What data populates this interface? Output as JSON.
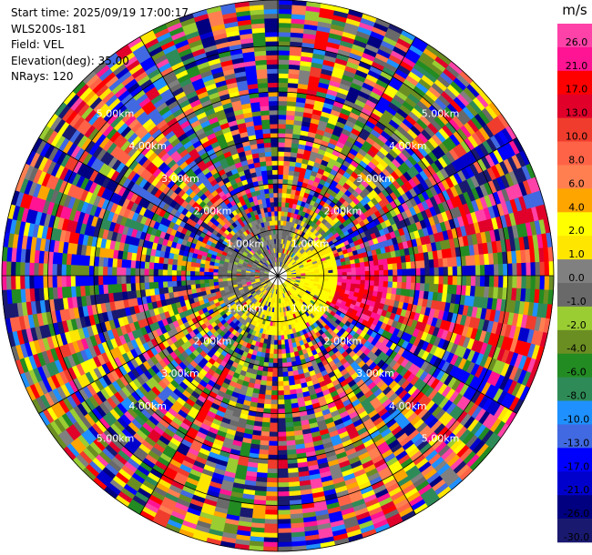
{
  "info": {
    "start_time": "Start time: 2025/09/19 17:00:17",
    "instrument": "WLS200s-181",
    "field": "Field: VEL",
    "elevation": "Elevation(deg): 35.00",
    "nrays": "NRays: 120"
  },
  "chart_data": {
    "type": "heatmap",
    "projection": "polar-ppi",
    "field": "VEL",
    "units": "m/s",
    "n_rays": 120,
    "elevation_deg": 35.0,
    "range_rings_km": [
      1.0,
      2.0,
      3.0,
      4.0,
      5.0
    ],
    "range_ring_labels": [
      "1.00km",
      "2.00km",
      "3.00km",
      "4.00km",
      "5.00km"
    ],
    "max_range_km": 6.0,
    "colorbar": {
      "title": "m/s",
      "ticks": [
        "26.0",
        "21.0",
        "17.0",
        "13.0",
        "10.0",
        "8.0",
        "6.0",
        "4.0",
        "2.0",
        "1.0",
        "0.0",
        "-1.0",
        "-2.0",
        "-4.0",
        "-6.0",
        "-8.0",
        "-10.0",
        "-13.0",
        "-17.0",
        "-21.0",
        "-26.0",
        "-30.0"
      ],
      "bins": [
        {
          "from": 26,
          "to": 30,
          "color": "#ff42a8"
        },
        {
          "from": 21,
          "to": 26,
          "color": "#ff1493"
        },
        {
          "from": 17,
          "to": 21,
          "color": "#ff0000"
        },
        {
          "from": 13,
          "to": 17,
          "color": "#e0002a"
        },
        {
          "from": 10,
          "to": 13,
          "color": "#f03c2c"
        },
        {
          "from": 8,
          "to": 10,
          "color": "#ff6347"
        },
        {
          "from": 6,
          "to": 8,
          "color": "#ff7f50"
        },
        {
          "from": 4,
          "to": 6,
          "color": "#ffa500"
        },
        {
          "from": 2,
          "to": 4,
          "color": "#ffff00"
        },
        {
          "from": 1,
          "to": 2,
          "color": "#ffe600"
        },
        {
          "from": 0,
          "to": 1,
          "color": "#808080"
        },
        {
          "from": -1,
          "to": 0,
          "color": "#696969"
        },
        {
          "from": -2,
          "to": -1,
          "color": "#9acd32"
        },
        {
          "from": -4,
          "to": -2,
          "color": "#6b8e23"
        },
        {
          "from": -6,
          "to": -4,
          "color": "#228b22"
        },
        {
          "from": -8,
          "to": -6,
          "color": "#2e8b57"
        },
        {
          "from": -10,
          "to": -8,
          "color": "#1e90ff"
        },
        {
          "from": -13,
          "to": -10,
          "color": "#4169e1"
        },
        {
          "from": -17,
          "to": -13,
          "color": "#0000ff"
        },
        {
          "from": -21,
          "to": -17,
          "color": "#0000cd"
        },
        {
          "from": -26,
          "to": -21,
          "color": "#000080"
        },
        {
          "from": -30,
          "to": -26,
          "color": "#191970"
        }
      ]
    }
  }
}
